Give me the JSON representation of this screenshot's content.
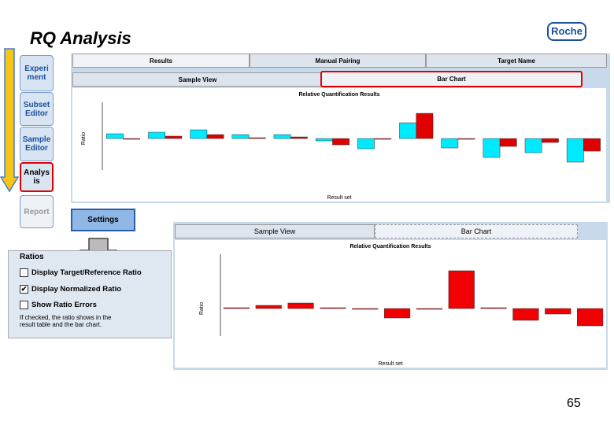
{
  "title": "RQ Analysis",
  "logo": "Roche",
  "page_number": "65",
  "sidebar": [
    "Experiment",
    "Subset Editor",
    "Sample Editor",
    "Analysis",
    "Report"
  ],
  "tabs": [
    "Results",
    "Manual Pairing",
    "Target Name"
  ],
  "upper_view_tabs": [
    "Sample View",
    "Bar Chart"
  ],
  "upper_chart": {
    "type": "bar",
    "title": "Relative Quantification Results",
    "y_label": "Ratio",
    "x_label": "Result set",
    "series": [
      {
        "color": "#00eaff",
        "values": [
          6,
          8,
          11,
          5,
          5,
          -3,
          -13,
          20,
          -12,
          -24,
          -18,
          -30
        ]
      },
      {
        "color": "#e00000",
        "values": [
          0,
          3,
          5,
          1,
          2,
          -8,
          0,
          32,
          0,
          -10,
          -5,
          -16
        ]
      }
    ]
  },
  "settings_button": "Settings",
  "ratios": {
    "title": "Ratios",
    "options": [
      {
        "label": "Display Target/Reference Ratio",
        "checked": false
      },
      {
        "label": "Display Normalized Ratio",
        "checked": true
      },
      {
        "label": "Show Ratio Errors",
        "checked": false
      }
    ],
    "note": "If checked, the ratio shows in the result table and the bar chart."
  },
  "lower_view_tabs": [
    "Sample View",
    "Bar Chart"
  ],
  "lower_chart": {
    "type": "bar",
    "title": "Relative Quantification Results",
    "y_label": "Ratio",
    "x_label": "Result set",
    "series": [
      {
        "color": "#f00000",
        "values": [
          1,
          4,
          7,
          1,
          0,
          -12,
          0,
          48,
          1,
          -15,
          -7,
          -22
        ]
      }
    ]
  }
}
